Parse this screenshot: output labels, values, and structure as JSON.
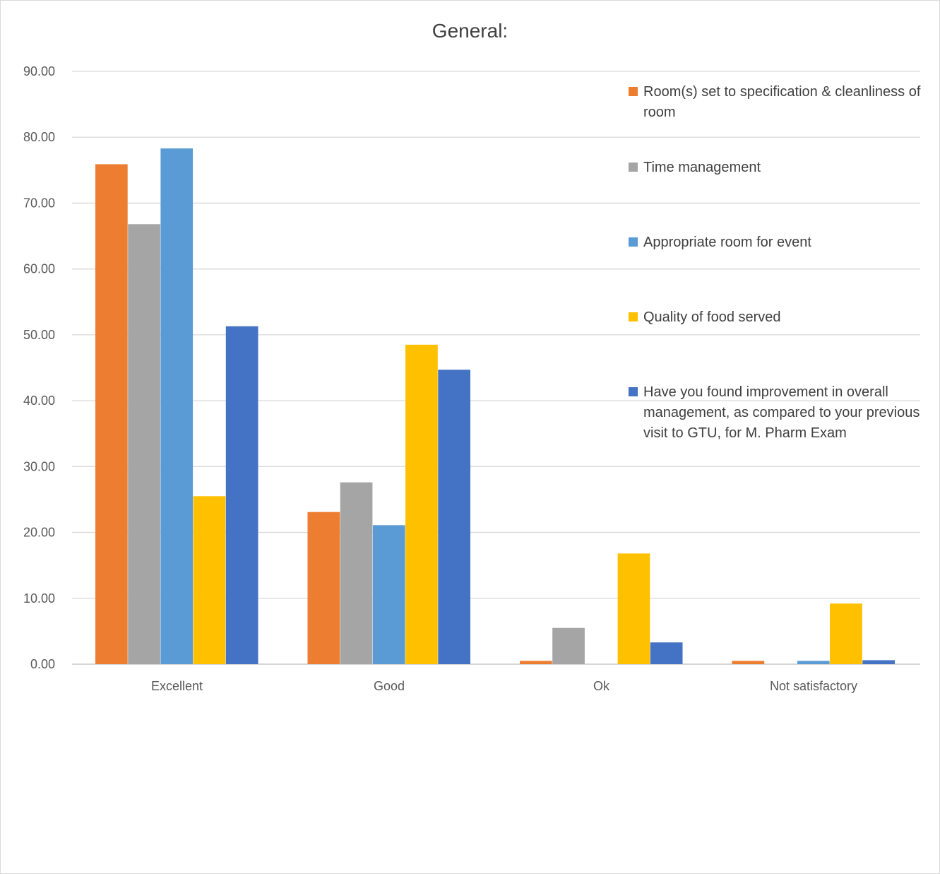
{
  "chart_data": {
    "type": "bar",
    "title": "General:",
    "xlabel": "",
    "ylabel": "",
    "ylim": [
      0,
      90
    ],
    "yticks": [
      "0.00",
      "10.00",
      "20.00",
      "30.00",
      "40.00",
      "50.00",
      "60.00",
      "70.00",
      "80.00",
      "90.00"
    ],
    "categories": [
      "Excellent",
      "Good",
      "Ok",
      "Not satisfactory"
    ],
    "grid": true,
    "legend_position": "right",
    "series": [
      {
        "name": "Room(s) set to specification &  cleanliness of room",
        "color": "#ED7D31",
        "values": [
          75.9,
          23.1,
          0.5,
          0.5
        ]
      },
      {
        "name": "Time management",
        "color": "#A5A5A5",
        "values": [
          66.8,
          27.6,
          5.5,
          0.0
        ]
      },
      {
        "name": "Appropriate room for event",
        "color": "#5B9BD5",
        "values": [
          78.3,
          21.1,
          0.0,
          0.5
        ]
      },
      {
        "name": "Quality of food served",
        "color": "#FFC000",
        "values": [
          25.5,
          48.5,
          16.8,
          9.2
        ]
      },
      {
        "name": "Have you found improvement in overall management, as compared to your previous visit to GTU, for M. Pharm Exam",
        "color": "#4472C4",
        "values": [
          51.3,
          44.7,
          3.3,
          0.6
        ]
      }
    ]
  }
}
